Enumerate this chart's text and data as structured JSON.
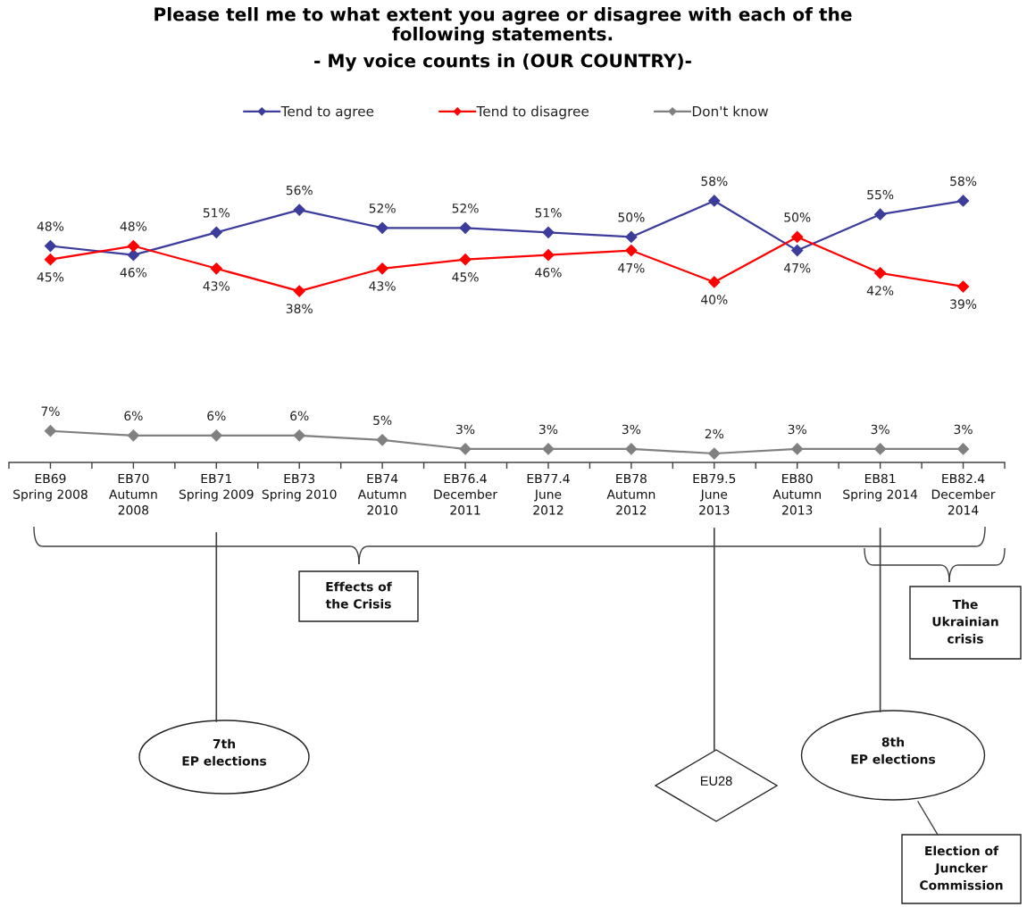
{
  "chart_data": {
    "type": "line",
    "title": "Please tell me to what extent you agree or disagree with each of the\nfollowing statements.",
    "subtitle": "- My voice counts in (OUR COUNTRY)-",
    "categories": [
      "EB69\nSpring 2008",
      "EB70\nAutumn\n2008",
      "EB71\nSpring 2009",
      "EB73\nSpring 2010",
      "EB74\nAutumn\n2010",
      "EB76.4\nDecember\n2011",
      "EB77.4\nJune\n2012",
      "EB78\nAutumn\n2012",
      "EB79.5\nJune\n2013",
      "EB80\nAutumn\n2013",
      "EB81\nSpring 2014",
      "EB82.4\nDecember\n2014"
    ],
    "series": [
      {
        "name": "Tend to agree",
        "color": "#3c3c9c",
        "values": [
          48,
          46,
          51,
          56,
          52,
          52,
          51,
          50,
          58,
          47,
          55,
          58
        ],
        "value_labels": [
          "48%",
          "46%",
          "51%",
          "56%",
          "52%",
          "52%",
          "51%",
          "50%",
          "58%",
          "47%",
          "55%",
          "58%"
        ]
      },
      {
        "name": "Tend to disagree",
        "color": "#ff0000",
        "values": [
          45,
          48,
          43,
          38,
          43,
          45,
          46,
          47,
          40,
          50,
          42,
          39
        ],
        "value_labels": [
          "45%",
          "48%",
          "43%",
          "38%",
          "43%",
          "45%",
          "46%",
          "47%",
          "40%",
          "50%",
          "42%",
          "39%"
        ]
      },
      {
        "name": "Don't know",
        "color": "#808080",
        "values": [
          7,
          6,
          6,
          6,
          5,
          3,
          3,
          3,
          2,
          3,
          3,
          3
        ],
        "value_labels": [
          "7%",
          "6%",
          "6%",
          "6%",
          "5%",
          "3%",
          "3%",
          "3%",
          "2%",
          "3%",
          "3%",
          "3%"
        ]
      }
    ],
    "legend": "top",
    "marker": "diamond",
    "line_style": "solid",
    "tick_labels": "x",
    "annotations": [
      "Effects of\nthe Crisis",
      "The\nUkrainian\ncrisis",
      "7th\nEP elections",
      "EU28",
      "8th\nEP elections",
      "Election of\nJuncker\nCommission"
    ]
  }
}
